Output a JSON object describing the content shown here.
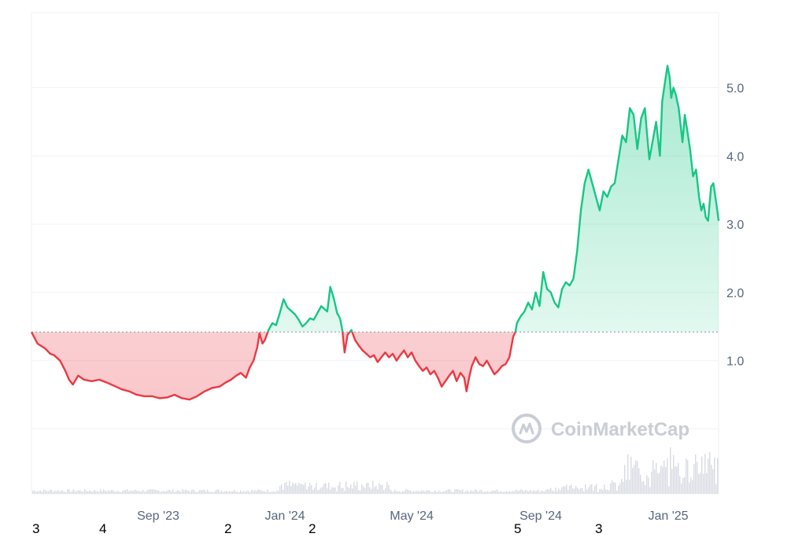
{
  "chart_data": {
    "type": "area",
    "x_ticks": [
      "Sep '23",
      "Jan '24",
      "May '24",
      "Sep '24",
      "Jan '25"
    ],
    "y_ticks": [
      "1.0",
      "2.0",
      "3.0",
      "4.0",
      "5.0"
    ],
    "ylim": [
      -0.95,
      6.1
    ],
    "baseline": 1.42,
    "grid": true,
    "colors": {
      "above": "#16c784",
      "below": "#ea3943",
      "grid": "#eff2f5",
      "volume": "#d7dbe2"
    },
    "series": [
      {
        "values": [
          [
            0,
            1.42
          ],
          [
            8,
            1.25
          ],
          [
            18,
            1.18
          ],
          [
            25,
            1.1
          ],
          [
            30,
            1.08
          ],
          [
            38,
            1.0
          ],
          [
            45,
            0.85
          ],
          [
            50,
            0.72
          ],
          [
            55,
            0.65
          ],
          [
            62,
            0.78
          ],
          [
            70,
            0.72
          ],
          [
            80,
            0.7
          ],
          [
            90,
            0.72
          ],
          [
            100,
            0.68
          ],
          [
            110,
            0.63
          ],
          [
            120,
            0.58
          ],
          [
            130,
            0.55
          ],
          [
            140,
            0.5
          ],
          [
            150,
            0.48
          ],
          [
            160,
            0.48
          ],
          [
            170,
            0.45
          ],
          [
            180,
            0.46
          ],
          [
            190,
            0.5
          ],
          [
            200,
            0.45
          ],
          [
            210,
            0.43
          ],
          [
            220,
            0.48
          ],
          [
            230,
            0.55
          ],
          [
            240,
            0.6
          ],
          [
            250,
            0.62
          ],
          [
            258,
            0.68
          ],
          [
            265,
            0.72
          ],
          [
            272,
            0.78
          ],
          [
            278,
            0.82
          ],
          [
            285,
            0.75
          ],
          [
            290,
            0.9
          ],
          [
            295,
            1.0
          ],
          [
            300,
            1.2
          ],
          [
            303,
            1.4
          ],
          [
            307,
            1.25
          ],
          [
            310,
            1.3
          ],
          [
            315,
            1.45
          ],
          [
            320,
            1.55
          ],
          [
            325,
            1.52
          ],
          [
            330,
            1.7
          ],
          [
            335,
            1.9
          ],
          [
            340,
            1.78
          ],
          [
            345,
            1.73
          ],
          [
            350,
            1.68
          ],
          [
            355,
            1.6
          ],
          [
            360,
            1.5
          ],
          [
            365,
            1.55
          ],
          [
            370,
            1.62
          ],
          [
            375,
            1.6
          ],
          [
            380,
            1.7
          ],
          [
            385,
            1.8
          ],
          [
            390,
            1.75
          ],
          [
            393,
            1.72
          ],
          [
            397,
            2.08
          ],
          [
            402,
            1.9
          ],
          [
            406,
            1.7
          ],
          [
            410,
            1.62
          ],
          [
            413,
            1.45
          ],
          [
            416,
            1.12
          ],
          [
            420,
            1.38
          ],
          [
            425,
            1.45
          ],
          [
            430,
            1.3
          ],
          [
            435,
            1.22
          ],
          [
            440,
            1.15
          ],
          [
            445,
            1.1
          ],
          [
            450,
            1.05
          ],
          [
            455,
            1.08
          ],
          [
            460,
            0.98
          ],
          [
            465,
            1.05
          ],
          [
            470,
            1.12
          ],
          [
            475,
            1.05
          ],
          [
            480,
            1.1
          ],
          [
            485,
            1.0
          ],
          [
            490,
            1.08
          ],
          [
            495,
            1.15
          ],
          [
            500,
            1.05
          ],
          [
            505,
            1.12
          ],
          [
            510,
            1.0
          ],
          [
            515,
            0.92
          ],
          [
            520,
            0.85
          ],
          [
            525,
            0.9
          ],
          [
            530,
            0.8
          ],
          [
            535,
            0.85
          ],
          [
            540,
            0.75
          ],
          [
            545,
            0.62
          ],
          [
            550,
            0.7
          ],
          [
            555,
            0.78
          ],
          [
            560,
            0.85
          ],
          [
            565,
            0.7
          ],
          [
            570,
            0.82
          ],
          [
            575,
            0.75
          ],
          [
            578,
            0.55
          ],
          [
            582,
            0.78
          ],
          [
            585,
            0.92
          ],
          [
            590,
            1.05
          ],
          [
            595,
            0.95
          ],
          [
            600,
            0.92
          ],
          [
            605,
            1.0
          ],
          [
            610,
            0.9
          ],
          [
            615,
            0.8
          ],
          [
            620,
            0.85
          ],
          [
            625,
            0.92
          ],
          [
            630,
            0.95
          ],
          [
            635,
            1.05
          ],
          [
            640,
            1.35
          ],
          [
            643,
            1.42
          ],
          [
            645,
            1.55
          ],
          [
            650,
            1.65
          ],
          [
            655,
            1.72
          ],
          [
            660,
            1.85
          ],
          [
            665,
            1.75
          ],
          [
            670,
            2.0
          ],
          [
            675,
            1.8
          ],
          [
            680,
            2.3
          ],
          [
            685,
            2.05
          ],
          [
            690,
            2.0
          ],
          [
            695,
            1.85
          ],
          [
            700,
            1.78
          ],
          [
            705,
            2.05
          ],
          [
            710,
            2.15
          ],
          [
            715,
            2.1
          ],
          [
            720,
            2.2
          ],
          [
            725,
            2.6
          ],
          [
            730,
            3.2
          ],
          [
            735,
            3.6
          ],
          [
            740,
            3.8
          ],
          [
            745,
            3.6
          ],
          [
            750,
            3.4
          ],
          [
            755,
            3.2
          ],
          [
            760,
            3.48
          ],
          [
            765,
            3.4
          ],
          [
            770,
            3.55
          ],
          [
            775,
            3.6
          ],
          [
            780,
            3.95
          ],
          [
            785,
            4.3
          ],
          [
            790,
            4.2
          ],
          [
            795,
            4.7
          ],
          [
            800,
            4.6
          ],
          [
            805,
            4.1
          ],
          [
            810,
            4.55
          ],
          [
            815,
            4.7
          ],
          [
            818,
            4.3
          ],
          [
            821,
            3.95
          ],
          [
            825,
            4.2
          ],
          [
            830,
            4.5
          ],
          [
            835,
            4.0
          ],
          [
            838,
            4.8
          ],
          [
            842,
            5.1
          ],
          [
            845,
            5.32
          ],
          [
            848,
            5.15
          ],
          [
            850,
            4.85
          ],
          [
            853,
            5.0
          ],
          [
            856,
            4.9
          ],
          [
            860,
            4.7
          ],
          [
            865,
            4.2
          ],
          [
            868,
            4.6
          ],
          [
            871,
            4.4
          ],
          [
            875,
            4.1
          ],
          [
            879,
            3.7
          ],
          [
            883,
            3.8
          ],
          [
            887,
            3.4
          ],
          [
            890,
            3.2
          ],
          [
            893,
            3.3
          ],
          [
            896,
            3.1
          ],
          [
            899,
            3.05
          ],
          [
            903,
            3.55
          ],
          [
            906,
            3.6
          ],
          [
            910,
            3.3
          ],
          [
            913,
            3.05
          ]
        ]
      }
    ]
  },
  "watermark": {
    "brand": "CoinMarketCap"
  },
  "bottom_numbers": [
    "3",
    "4",
    "2",
    "2",
    "5",
    "3"
  ]
}
